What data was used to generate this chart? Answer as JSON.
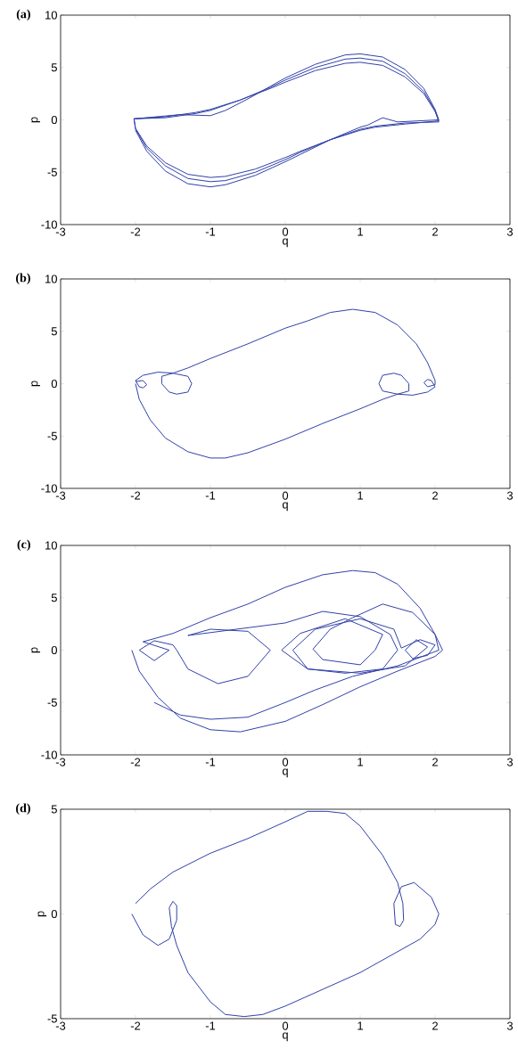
{
  "chart_data": [
    {
      "type": "line",
      "title": "(a)",
      "xlabel": "q",
      "ylabel": "p",
      "color": "#3040a8",
      "xlim": [
        -3,
        3
      ],
      "ylim": [
        -10,
        10
      ],
      "xticks": [
        -3,
        -2,
        -1,
        0,
        1,
        2,
        3
      ],
      "yticks": [
        -10,
        -5,
        0,
        5,
        10
      ],
      "x": [
        -2.02,
        -1.6,
        -1.2,
        -1.0,
        -0.6,
        -0.2,
        0,
        0.4,
        0.8,
        1.0,
        1.3,
        1.6,
        1.85,
        2.0,
        2.05,
        1.6,
        1.2,
        1.0,
        0.6,
        0.2,
        0,
        -0.4,
        -0.8,
        -1.0,
        -1.3,
        -1.6,
        -1.85,
        -2.0,
        -2.02,
        -1.6,
        -1.2,
        -1.0,
        -0.6,
        -0.2,
        0,
        0.4,
        0.8,
        1.0,
        1.3,
        1.6,
        1.85,
        2.0,
        2.05,
        1.6,
        1.2,
        1.0,
        0.6,
        0.2,
        0,
        -0.4,
        -0.8,
        -1.0,
        -1.3,
        -1.6,
        -1.85,
        -2.0,
        -2.02,
        -1.4,
        -1.0,
        -0.8,
        -0.5,
        -0.2,
        0,
        0.4,
        0.8,
        1.0,
        1.3,
        1.6,
        1.85,
        2.0,
        2.05,
        1.5,
        1.3,
        1.1,
        1.0,
        0.6,
        0.2,
        0,
        -0.4,
        -0.8,
        -1.0,
        -1.3,
        -1.6,
        -1.85,
        -2.0
      ],
      "values": [
        0.1,
        0.3,
        0.7,
        1.0,
        1.9,
        3.0,
        3.6,
        4.7,
        5.4,
        5.5,
        5.2,
        4.1,
        2.5,
        0.8,
        -0.1,
        -0.4,
        -0.7,
        -1.0,
        -1.9,
        -3.0,
        -3.6,
        -4.7,
        -5.4,
        -5.5,
        -5.2,
        -4.1,
        -2.5,
        -0.8,
        0.1,
        0.2,
        0.6,
        0.9,
        1.9,
        3.1,
        3.8,
        5.0,
        5.8,
        5.9,
        5.6,
        4.4,
        2.7,
        0.9,
        -0.2,
        -0.3,
        -0.6,
        -0.9,
        -1.9,
        -3.1,
        -3.8,
        -5.0,
        -5.8,
        -5.9,
        -5.6,
        -4.4,
        -2.7,
        -0.9,
        0.1,
        0.5,
        0.4,
        0.9,
        2.0,
        3.2,
        4.0,
        5.3,
        6.2,
        6.3,
        6.0,
        4.8,
        3.0,
        1.0,
        0,
        -0.2,
        0.2,
        -0.5,
        -0.7,
        -1.9,
        -3.3,
        -4.0,
        -5.3,
        -6.2,
        -6.4,
        -6.1,
        -4.9,
        -3.0,
        -1.0
      ]
    },
    {
      "type": "line",
      "title": "(b)",
      "xlabel": "q",
      "ylabel": "p",
      "color": "#3040a8",
      "xlim": [
        -3,
        3
      ],
      "ylim": [
        -10,
        10
      ],
      "xticks": [
        -3,
        -2,
        -1,
        0,
        1,
        2,
        3
      ],
      "yticks": [
        -10,
        -5,
        0,
        5,
        10
      ],
      "x": [
        -2.0,
        -1.95,
        -1.8,
        -1.6,
        -1.3,
        -1.0,
        -0.8,
        -0.5,
        0,
        0.5,
        1.0,
        1.3,
        1.5,
        1.65,
        1.65,
        1.55,
        1.45,
        1.3,
        1.25,
        1.3,
        1.5,
        1.7,
        1.9,
        2.0,
        1.95,
        1.9,
        1.85,
        1.9,
        2.0,
        2.0,
        1.9,
        1.75,
        1.5,
        1.2,
        0.9,
        0.6,
        0.3,
        0,
        -0.5,
        -1.0,
        -1.3,
        -1.5,
        -1.65,
        -1.65,
        -1.55,
        -1.45,
        -1.3,
        -1.25,
        -1.3,
        -1.5,
        -1.7,
        -1.9,
        -2.0,
        -1.95,
        -1.9,
        -1.85,
        -1.9,
        -2.0
      ],
      "values": [
        0,
        -1.5,
        -3.5,
        -5.2,
        -6.5,
        -7.1,
        -7.1,
        -6.6,
        -5.3,
        -3.8,
        -2.4,
        -1.5,
        -1.0,
        -0.7,
        0,
        0.8,
        1.0,
        0.8,
        0,
        -0.7,
        -1.0,
        -1.1,
        -0.8,
        -0.3,
        0.3,
        0.4,
        0.1,
        -0.3,
        -0.1,
        0.3,
        2.0,
        3.8,
        5.6,
        6.8,
        7.1,
        6.8,
        6.0,
        5.3,
        3.8,
        2.4,
        1.5,
        1.0,
        0.7,
        0,
        -0.8,
        -1.0,
        -0.8,
        0,
        0.7,
        1.0,
        1.1,
        0.8,
        0.3,
        -0.3,
        -0.4,
        -0.1,
        0.3,
        0.2
      ]
    },
    {
      "type": "line",
      "title": "(c)",
      "xlabel": "q",
      "ylabel": "p",
      "color": "#3040a8",
      "xlim": [
        -3,
        3
      ],
      "ylim": [
        -10,
        10
      ],
      "xticks": [
        -3,
        -2,
        -1,
        0,
        1,
        2,
        3
      ],
      "yticks": [
        -10,
        -5,
        0,
        5,
        10
      ],
      "x": [
        -2.05,
        -1.95,
        -1.7,
        -1.4,
        -1.0,
        -0.6,
        0,
        0.5,
        1.0,
        1.5,
        2.0,
        2.1,
        2.0,
        1.8,
        1.5,
        1.2,
        0.9,
        0.5,
        0,
        -0.5,
        -1.0,
        -1.5,
        -1.9,
        -1.55,
        -1.75,
        -1.95,
        -1.75,
        -1.5,
        -1.45,
        -1.3,
        -0.9,
        -0.5,
        -0.2,
        -0.5,
        -1.0,
        -1.3,
        0,
        0.5,
        1.0,
        1.4,
        1.5,
        1.3,
        0.8,
        0.3,
        0.1,
        0.4,
        1.0,
        1.45,
        1.55,
        1.8,
        2.0,
        1.9,
        1.7,
        1.6,
        1.75,
        1.9,
        1.6,
        1.0,
        0.3,
        -0.05,
        0.2,
        0.8,
        1.3,
        1.2,
        1.0,
        0.5,
        0.37,
        0.6,
        0.9,
        1.3,
        1.7,
        2.0,
        2.05,
        1.5,
        0.9,
        0.4,
        0,
        -0.5,
        -1.0,
        -1.4,
        -1.75
      ],
      "values": [
        0,
        -2,
        -4.5,
        -6.5,
        -7.6,
        -7.8,
        -6.8,
        -5.2,
        -3.5,
        -2.0,
        -0.6,
        0,
        1.5,
        4.0,
        6.3,
        7.4,
        7.6,
        7.2,
        6.0,
        4.4,
        3.1,
        1.6,
        0.8,
        0,
        -1.0,
        0,
        0.9,
        0.5,
        0,
        -1.8,
        -3.2,
        -2.5,
        0,
        1.8,
        2.0,
        1.4,
        2.6,
        3.7,
        3.2,
        1.5,
        0,
        -1.8,
        -2.2,
        -1.8,
        0,
        2.0,
        3.0,
        2.0,
        0.2,
        1.0,
        0.5,
        -0.5,
        -0.8,
        0,
        1.0,
        0.3,
        -1.5,
        -2.2,
        -1.8,
        0,
        1.6,
        3.0,
        1.5,
        0,
        -1.4,
        -0.9,
        0.1,
        2.0,
        3.1,
        4.4,
        3.6,
        1.5,
        0,
        -1.5,
        -2.5,
        -3.8,
        -5.0,
        -6.4,
        -6.6,
        -6.2,
        -5.0
      ]
    },
    {
      "type": "line",
      "title": "(d)",
      "xlabel": "q",
      "ylabel": "p",
      "color": "#3040a8",
      "xlim": [
        -3,
        3
      ],
      "ylim": [
        -5,
        5
      ],
      "xticks": [
        -3,
        -2,
        -1,
        0,
        1,
        2,
        3
      ],
      "yticks": [
        -5,
        0,
        5
      ],
      "x": [
        -2.05,
        -1.9,
        -1.7,
        -1.55,
        -1.45,
        -1.45,
        -1.5,
        -1.55,
        -1.52,
        -1.45,
        -1.3,
        -1.0,
        -0.8,
        -0.55,
        -0.3,
        0,
        0.5,
        1.0,
        1.5,
        1.8,
        2.0,
        2.05,
        1.95,
        1.72,
        1.55,
        1.45,
        1.47,
        1.53,
        1.58,
        1.57,
        1.5,
        1.3,
        1.0,
        0.8,
        0.55,
        0.3,
        0,
        -0.5,
        -1.0,
        -1.5,
        -1.8,
        -2.0
      ],
      "values": [
        0,
        -1.0,
        -1.5,
        -1.2,
        -0.3,
        0.4,
        0.6,
        0.3,
        -0.6,
        -1.5,
        -2.8,
        -4.2,
        -4.8,
        -4.9,
        -4.8,
        -4.4,
        -3.6,
        -2.8,
        -1.8,
        -1.2,
        -0.5,
        0,
        0.8,
        1.5,
        1.3,
        0.5,
        -0.5,
        -0.6,
        -0.3,
        0.5,
        1.5,
        2.8,
        4.2,
        4.8,
        4.9,
        4.9,
        4.4,
        3.6,
        2.9,
        2.0,
        1.2,
        0.5
      ]
    }
  ]
}
